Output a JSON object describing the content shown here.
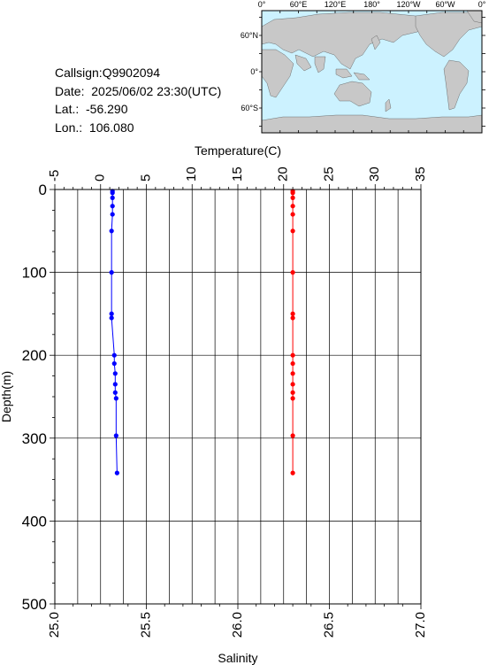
{
  "info": {
    "callsign": "Callsign:Q9902094",
    "date": "Date:  2025/06/02 23:30(UTC)",
    "lat": "Lat.:  -56.290",
    "lon": "Lon.:  106.080"
  },
  "map": {
    "top_labels": [
      "0°",
      "60°E",
      "120°E",
      "180°",
      "120°W",
      "60°W",
      "0°"
    ],
    "side_labels": [
      "60°N",
      "0°",
      "60°S"
    ],
    "colors": {
      "ocean": "#ccf2ff",
      "land": "#c8c8c8",
      "marker": "#ff0000"
    },
    "marker_icon": "star-icon"
  },
  "chart_data": {
    "type": "line",
    "title": "",
    "x_top": {
      "label": "Temperature(C)",
      "range": [
        -5,
        35
      ],
      "ticks": [
        "-5",
        "0",
        "5",
        "10",
        "15",
        "20",
        "25",
        "30",
        "35"
      ]
    },
    "x_bottom": {
      "label": "Salinity",
      "range": [
        25.0,
        27.0
      ],
      "ticks": [
        "25.0",
        "25.5",
        "26.0",
        "26.5",
        "27.0"
      ]
    },
    "y": {
      "label": "Depth(m)",
      "range": [
        0,
        500
      ],
      "inverted": true,
      "ticks": [
        "0",
        "100",
        "200",
        "300",
        "400",
        "500"
      ]
    },
    "grid": true,
    "series": [
      {
        "name": "Temperature",
        "axis": "top",
        "color": "#0000ff",
        "depth": [
          2,
          4,
          10,
          20,
          30,
          50,
          100,
          150,
          155,
          200,
          210,
          222,
          235,
          245,
          252,
          297,
          342
        ],
        "values": [
          1.3,
          1.3,
          1.3,
          1.3,
          1.3,
          1.2,
          1.2,
          1.2,
          1.2,
          1.5,
          1.5,
          1.6,
          1.6,
          1.6,
          1.7,
          1.7,
          1.8
        ]
      },
      {
        "name": "Salinity",
        "axis": "bottom",
        "color": "#ff0000",
        "depth": [
          2,
          4,
          10,
          20,
          30,
          50,
          100,
          150,
          155,
          200,
          210,
          222,
          235,
          245,
          252,
          297,
          342
        ],
        "values": [
          26.3,
          26.3,
          26.3,
          26.3,
          26.3,
          26.3,
          26.3,
          26.3,
          26.3,
          26.3,
          26.3,
          26.3,
          26.3,
          26.3,
          26.3,
          26.3,
          26.3
        ]
      }
    ]
  }
}
